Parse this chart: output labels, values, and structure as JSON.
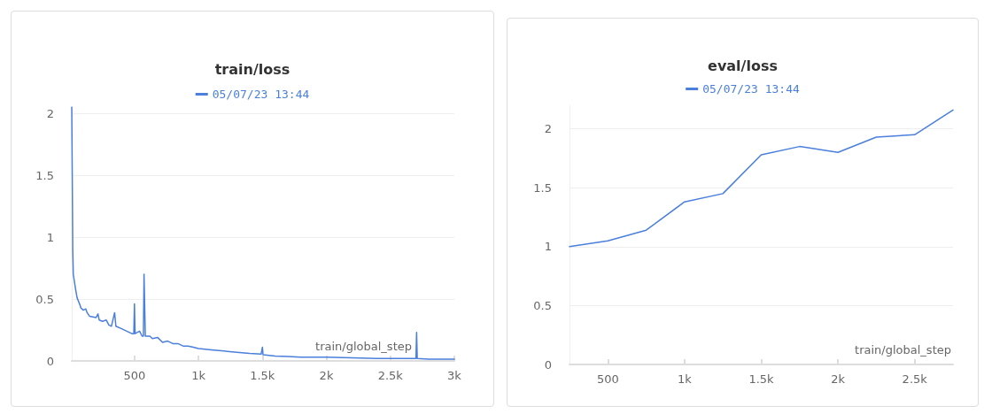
{
  "chart_data": [
    {
      "type": "line",
      "title": "train/loss",
      "xlabel": "train/global_step",
      "legend": "top",
      "grid": "y",
      "marker": "none",
      "line_style": "solid",
      "xlim": [
        10,
        3000
      ],
      "ylim": [
        0,
        2.05
      ],
      "xticks": [
        {
          "value": 500,
          "label": "500"
        },
        {
          "value": 1000,
          "label": "1k"
        },
        {
          "value": 1500,
          "label": "1.5k"
        },
        {
          "value": 2000,
          "label": "2k"
        },
        {
          "value": 2500,
          "label": "2.5k"
        },
        {
          "value": 3000,
          "label": "3k"
        }
      ],
      "yticks": [
        0,
        0.5,
        1,
        1.5,
        2
      ],
      "series": [
        {
          "name": "05/07/23 13:44",
          "color": "#4a7fdc",
          "x": [
            10,
            14,
            18,
            22,
            40,
            52,
            75,
            80,
            100,
            120,
            130,
            150,
            200,
            215,
            225,
            250,
            280,
            300,
            320,
            345,
            355,
            400,
            440,
            480,
            495,
            500,
            505,
            540,
            560,
            570,
            575,
            585,
            620,
            640,
            680,
            720,
            760,
            800,
            840,
            880,
            920,
            960,
            1000,
            1100,
            1200,
            1300,
            1400,
            1490,
            1500,
            1505,
            1600,
            1700,
            1800,
            2000,
            2200,
            2400,
            2600,
            2700,
            2705,
            2710,
            2800,
            2900,
            3000
          ],
          "values": [
            2.05,
            1.5,
            0.9,
            0.7,
            0.58,
            0.51,
            0.45,
            0.43,
            0.41,
            0.42,
            0.39,
            0.36,
            0.35,
            0.38,
            0.33,
            0.32,
            0.33,
            0.29,
            0.28,
            0.39,
            0.28,
            0.26,
            0.24,
            0.22,
            0.22,
            0.46,
            0.22,
            0.24,
            0.2,
            0.2,
            0.7,
            0.2,
            0.2,
            0.18,
            0.19,
            0.15,
            0.16,
            0.14,
            0.14,
            0.12,
            0.12,
            0.11,
            0.1,
            0.09,
            0.08,
            0.07,
            0.06,
            0.055,
            0.11,
            0.05,
            0.04,
            0.035,
            0.03,
            0.03,
            0.025,
            0.02,
            0.02,
            0.02,
            0.23,
            0.02,
            0.015,
            0.015,
            0.015
          ]
        }
      ]
    },
    {
      "type": "line",
      "title": "eval/loss",
      "xlabel": "train/global_step",
      "legend": "top",
      "grid": "y",
      "marker": "none",
      "line_style": "solid",
      "xlim": [
        250,
        2750
      ],
      "ylim": [
        0,
        2.2
      ],
      "xticks": [
        {
          "value": 500,
          "label": "500"
        },
        {
          "value": 1000,
          "label": "1k"
        },
        {
          "value": 1500,
          "label": "1.5k"
        },
        {
          "value": 2000,
          "label": "2k"
        },
        {
          "value": 2500,
          "label": "2.5k"
        }
      ],
      "yticks": [
        0,
        0.5,
        1,
        1.5,
        2
      ],
      "series": [
        {
          "name": "05/07/23 13:44",
          "color": "#4a7fdc",
          "x": [
            250,
            500,
            750,
            1000,
            1250,
            1500,
            1750,
            2000,
            2250,
            2500,
            2750
          ],
          "values": [
            1.0,
            1.05,
            1.14,
            1.38,
            1.45,
            1.78,
            1.85,
            1.8,
            1.93,
            1.95,
            2.16
          ]
        }
      ]
    }
  ]
}
